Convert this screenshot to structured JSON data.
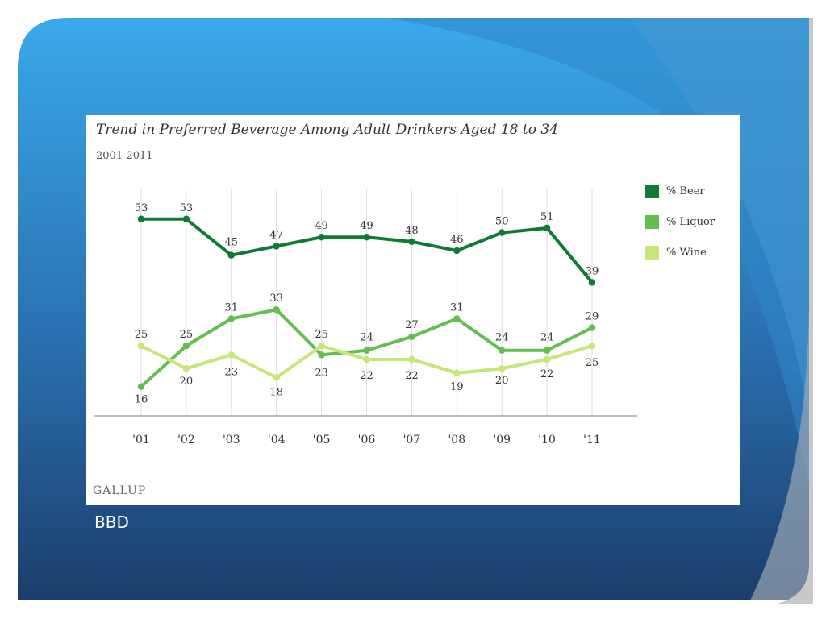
{
  "caption": "BBD",
  "source": "GALLUP",
  "colors": {
    "beer": "#0f7a35",
    "liquor": "#63bd4f",
    "wine": "#c8e57a",
    "background_light": "#3aa9ea",
    "background_dark": "#1c3d6b"
  },
  "chart_data": {
    "type": "line",
    "title": "Trend in Preferred Beverage Among Adult Drinkers Aged 18 to 34",
    "subtitle": "2001-2011",
    "categories": [
      "'01",
      "'02",
      "'03",
      "'04",
      "'05",
      "'06",
      "'07",
      "'08",
      "'09",
      "'10",
      "'11"
    ],
    "series": [
      {
        "name": "% Beer",
        "values": [
          53,
          53,
          45,
          47,
          49,
          49,
          48,
          46,
          50,
          51,
          39
        ]
      },
      {
        "name": "% Liquor",
        "values": [
          16,
          25,
          31,
          33,
          23,
          24,
          27,
          31,
          24,
          24,
          29
        ]
      },
      {
        "name": "% Wine",
        "values": [
          25,
          20,
          23,
          18,
          25,
          22,
          22,
          19,
          20,
          22,
          25
        ]
      }
    ],
    "legend_position": "right",
    "grid": "vertical"
  }
}
